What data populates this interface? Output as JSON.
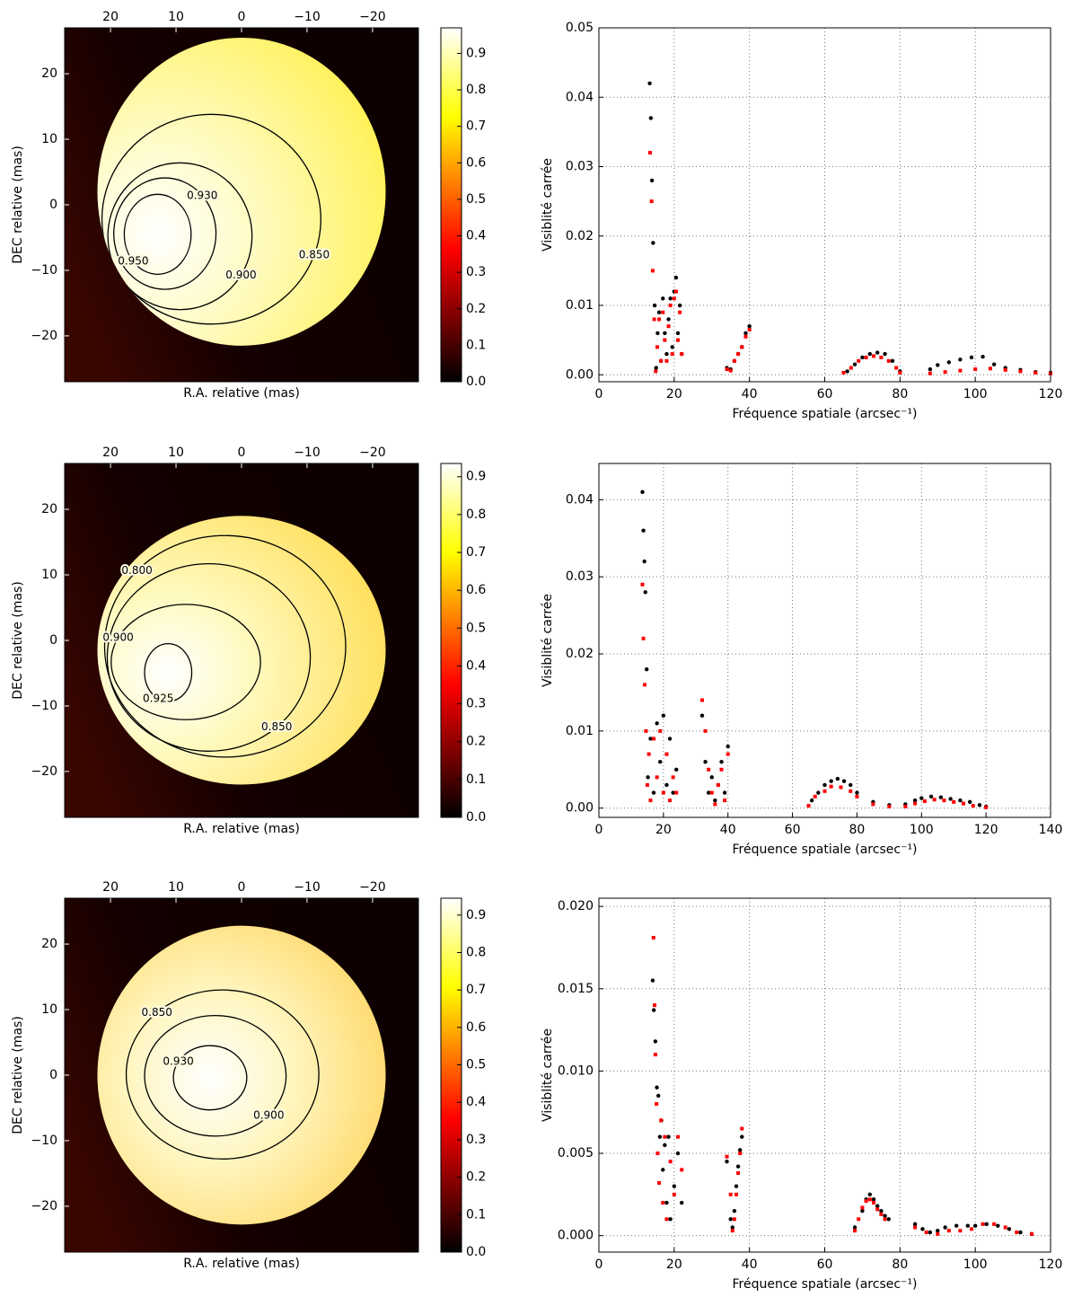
{
  "chart_data": [
    {
      "type": "image",
      "xlabel": "R.A. relative (mas)",
      "ylabel": "DEC relative (mas)",
      "xlim": [
        27,
        -27
      ],
      "ylim": [
        -27,
        27
      ],
      "xticks": [
        20,
        10,
        0,
        {
          "value": -10,
          "label": "−10"
        },
        {
          "value": -20,
          "label": "−20"
        }
      ],
      "yticks": [
        {
          "value": -20,
          "label": "−20"
        },
        {
          "value": -10,
          "label": "−10"
        },
        0,
        10,
        20
      ],
      "disk": {
        "center": [
          0,
          2
        ],
        "radii": [
          22,
          23.5
        ]
      },
      "contours": [
        {
          "level": {
            "value": 0.85,
            "label": "0.850"
          },
          "center": [
            4.6,
            -2.2
          ],
          "radii": [
            16.7,
            16
          ]
        },
        {
          "level": {
            "value": 0.9,
            "label": "0.900"
          },
          "center": [
            9.4,
            -4.8
          ],
          "radii": [
            11,
            11.2
          ]
        },
        {
          "level": {
            "value": 0.93,
            "label": "0.930"
          },
          "center": [
            11.7,
            -4.4
          ],
          "radii": [
            7.8,
            8.5
          ]
        },
        {
          "level": {
            "value": 0.95,
            "label": "0.950"
          },
          "center": [
            12.8,
            -4.5
          ],
          "radii": [
            5.1,
            6.1
          ]
        }
      ],
      "clim": [
        0,
        0.97
      ],
      "cticks": [
        {
          "value": 0,
          "label": "0.0"
        },
        0.1,
        0.2,
        0.3,
        0.4,
        0.5,
        0.6,
        0.7,
        0.8,
        0.9
      ]
    },
    {
      "type": "scatter",
      "xlabel": "Fréquence spatiale (arcsec⁻¹)",
      "ylabel": "Visiblité carrée",
      "xlim": [
        0,
        120
      ],
      "ylim": [
        -0.001,
        0.05
      ],
      "grid": true,
      "xticks": [
        0,
        20,
        40,
        60,
        80,
        100,
        120
      ],
      "yticks": [
        {
          "value": 0,
          "label": "0.00"
        },
        0.01,
        0.02,
        0.03,
        0.04,
        0.05
      ],
      "series": [
        {
          "color": "#000000",
          "marker": "circle",
          "x": [
            13.5,
            13.8,
            14.1,
            14.4,
            14.8,
            15.2,
            15.6,
            16,
            16.5,
            17,
            17.5,
            18,
            18.5,
            19,
            19.5,
            20,
            20.5,
            21,
            21.5,
            22,
            34,
            35,
            36,
            37,
            38,
            39,
            40,
            66,
            68,
            70,
            72,
            74,
            76,
            78,
            80,
            88,
            90,
            93,
            96,
            99,
            102,
            105,
            108,
            112,
            116,
            120
          ],
          "values": [
            0.042,
            0.037,
            0.028,
            0.019,
            0.01,
            0.001,
            0.006,
            0.009,
            0.002,
            0.011,
            0.006,
            0.003,
            0.008,
            0.011,
            0.004,
            0.012,
            0.014,
            0.006,
            0.01,
            0.003,
            0.001,
            0.0008,
            0.002,
            0.003,
            0.004,
            0.006,
            0.007,
            0.0005,
            0.0015,
            0.0025,
            0.003,
            0.0032,
            0.003,
            0.002,
            0.0005,
            0.0008,
            0.0014,
            0.0018,
            0.0022,
            0.0025,
            0.0026,
            0.0015,
            0.001,
            0.0007,
            0.0004,
            0.0003
          ]
        },
        {
          "color": "#ff0000",
          "marker": "square",
          "x": [
            13.6,
            14,
            14.3,
            14.7,
            15.1,
            15.5,
            16,
            16.5,
            17,
            17.5,
            18,
            18.5,
            19,
            19.5,
            20,
            20.5,
            21,
            21.5,
            22,
            34,
            35,
            36,
            37,
            38,
            39,
            40,
            65,
            67,
            69,
            71,
            73,
            75,
            77,
            79,
            80,
            88,
            92,
            96,
            100,
            104,
            108,
            112,
            116,
            120
          ],
          "values": [
            0.032,
            0.025,
            0.015,
            0.008,
            0.0005,
            0.004,
            0.008,
            0.002,
            0.009,
            0.005,
            0.002,
            0.007,
            0.01,
            0.003,
            0.011,
            0.012,
            0.005,
            0.009,
            0.003,
            0.0008,
            0.0006,
            0.002,
            0.003,
            0.004,
            0.0055,
            0.0065,
            0.0003,
            0.001,
            0.002,
            0.0025,
            0.0027,
            0.0025,
            0.002,
            0.001,
            0.0003,
            0.0002,
            0.0004,
            0.0006,
            0.0008,
            0.0009,
            0.0007,
            0.0005,
            0.0003,
            0.0002
          ]
        }
      ]
    },
    {
      "type": "image",
      "xlabel": "R.A. relative (mas)",
      "ylabel": "DEC relative (mas)",
      "xlim": [
        27,
        -27
      ],
      "ylim": [
        -27,
        27
      ],
      "xticks": [
        20,
        10,
        0,
        {
          "value": -10,
          "label": "−10"
        },
        {
          "value": -20,
          "label": "−20"
        }
      ],
      "yticks": [
        {
          "value": -20,
          "label": "−20"
        },
        {
          "value": -10,
          "label": "−10"
        },
        0,
        10,
        20
      ],
      "disk": {
        "center": [
          0,
          -1.5
        ],
        "radii": [
          22,
          20.5
        ]
      },
      "contours": [
        {
          "level": {
            "value": 0.8,
            "label": "0.800"
          },
          "center": [
            2.5,
            -0.9
          ],
          "radii": [
            18.4,
            16.9
          ]
        },
        {
          "level": {
            "value": 0.85,
            "label": "0.850"
          },
          "center": [
            5,
            -2.6
          ],
          "radii": [
            15.5,
            14.3
          ]
        },
        {
          "level": {
            "value": 0.9,
            "label": "0.900"
          },
          "center": [
            8.5,
            -3.3
          ],
          "radii": [
            11.4,
            8.8
          ]
        },
        {
          "level": {
            "value": 0.925,
            "label": "0.925"
          },
          "center": [
            11.2,
            -4.9
          ],
          "radii": [
            3.6,
            4.4
          ]
        }
      ],
      "clim": [
        0,
        0.935
      ],
      "cticks": [
        {
          "value": 0,
          "label": "0.0"
        },
        0.1,
        0.2,
        0.3,
        0.4,
        0.5,
        0.6,
        0.7,
        0.8,
        0.9
      ]
    },
    {
      "type": "scatter",
      "xlabel": "Fréquence spatiale (arcsec⁻¹)",
      "ylabel": "Visiblité carrée",
      "xlim": [
        0,
        140
      ],
      "ylim": [
        -0.0012,
        0.0447
      ],
      "grid": true,
      "xticks": [
        0,
        20,
        40,
        60,
        80,
        100,
        120,
        140
      ],
      "yticks": [
        {
          "value": 0,
          "label": "0.00"
        },
        0.01,
        0.02,
        0.03,
        0.04
      ],
      "series": [
        {
          "color": "#000000",
          "marker": "circle",
          "x": [
            13.5,
            13.8,
            14.1,
            14.4,
            14.8,
            15.2,
            16,
            17,
            18,
            19,
            20,
            21,
            22,
            23,
            24,
            32,
            33,
            34,
            35,
            36,
            37,
            38,
            39,
            40,
            66,
            68,
            70,
            72,
            74,
            76,
            78,
            80,
            85,
            90,
            95,
            98,
            100,
            103,
            106,
            109,
            112,
            115,
            118,
            120
          ],
          "values": [
            0.041,
            0.036,
            0.032,
            0.028,
            0.018,
            0.004,
            0.009,
            0.002,
            0.011,
            0.006,
            0.012,
            0.003,
            0.009,
            0.002,
            0.005,
            0.012,
            0.006,
            0.002,
            0.004,
            0.001,
            0.003,
            0.006,
            0.002,
            0.008,
            0.001,
            0.002,
            0.003,
            0.0035,
            0.0038,
            0.0035,
            0.003,
            0.002,
            0.0008,
            0.0004,
            0.0005,
            0.001,
            0.0013,
            0.0015,
            0.0014,
            0.0012,
            0.001,
            0.0008,
            0.0004,
            0.0002
          ]
        },
        {
          "color": "#ff0000",
          "marker": "square",
          "x": [
            13.5,
            13.8,
            14.2,
            14.6,
            15,
            15.5,
            16,
            17,
            18,
            19,
            20,
            21,
            22,
            23,
            24,
            32,
            33,
            34,
            35,
            36,
            37,
            38,
            39,
            40,
            65,
            67,
            70,
            72,
            75,
            78,
            80,
            85,
            90,
            95,
            98,
            101,
            104,
            107,
            110,
            113,
            116,
            120
          ],
          "values": [
            0.029,
            0.022,
            0.016,
            0.01,
            0.003,
            0.007,
            0.001,
            0.009,
            0.004,
            0.01,
            0.002,
            0.007,
            0.001,
            0.004,
            0.002,
            0.014,
            0.01,
            0.005,
            0.002,
            0.0005,
            0.003,
            0.005,
            0.001,
            0.007,
            0.0003,
            0.0015,
            0.0022,
            0.0028,
            0.0027,
            0.0022,
            0.0015,
            0.0005,
            0.0002,
            0.0002,
            0.0006,
            0.0009,
            0.0011,
            0.001,
            0.0008,
            0.0006,
            0.0003,
            0.0001
          ]
        }
      ]
    },
    {
      "type": "image",
      "xlabel": "R.A. relative (mas)",
      "ylabel": "DEC relative (mas)",
      "xlim": [
        27,
        -27
      ],
      "ylim": [
        -27,
        27
      ],
      "xticks": [
        20,
        10,
        0,
        {
          "value": -10,
          "label": "−10"
        },
        {
          "value": -20,
          "label": "−20"
        }
      ],
      "yticks": [
        {
          "value": -20,
          "label": "−20"
        },
        {
          "value": -10,
          "label": "−10"
        },
        0,
        10,
        20
      ],
      "disk": {
        "center": [
          0,
          0
        ],
        "radii": [
          22,
          22.8
        ]
      },
      "contours": [
        {
          "level": {
            "value": 0.85,
            "label": "0.850"
          },
          "center": [
            2.9,
            0.1
          ],
          "radii": [
            14.7,
            12.9
          ]
        },
        {
          "level": {
            "value": 0.9,
            "label": "0.900"
          },
          "center": [
            4,
            -0.1
          ],
          "radii": [
            10.8,
            9.2
          ]
        },
        {
          "level": {
            "value": 0.93,
            "label": "0.930"
          },
          "center": [
            4.8,
            -0.4
          ],
          "radii": [
            5.6,
            4.9
          ]
        }
      ],
      "clim": [
        0,
        0.945
      ],
      "cticks": [
        {
          "value": 0,
          "label": "0.0"
        },
        0.1,
        0.2,
        0.3,
        0.4,
        0.5,
        0.6,
        0.7,
        0.8,
        0.9
      ]
    },
    {
      "type": "scatter",
      "xlabel": "Fréquence spatiale (arcsec⁻¹)",
      "ylabel": "Visiblité carrée",
      "xlim": [
        0,
        120
      ],
      "ylim": [
        -0.001,
        0.0205
      ],
      "grid": true,
      "xticks": [
        0,
        20,
        40,
        60,
        80,
        100,
        120
      ],
      "yticks": [
        {
          "value": 0,
          "label": "0.000"
        },
        0.005,
        {
          "value": 0.01,
          "label": "0.010"
        },
        0.015,
        {
          "value": 0.02,
          "label": "0.020"
        }
      ],
      "series": [
        {
          "color": "#000000",
          "marker": "circle",
          "x": [
            14.3,
            14.6,
            15,
            15.4,
            15.8,
            16.2,
            16.6,
            17,
            17.5,
            18,
            18.5,
            19,
            20,
            21,
            22,
            34,
            35,
            35.5,
            36,
            36.5,
            37,
            37.5,
            38,
            68,
            70,
            71,
            72,
            73,
            74,
            75,
            76,
            77,
            84,
            86,
            88,
            90,
            92,
            95,
            98,
            100,
            103,
            106,
            109,
            112,
            115
          ],
          "values": [
            0.0155,
            0.0137,
            0.0118,
            0.009,
            0.0085,
            0.006,
            0.007,
            0.004,
            0.0055,
            0.002,
            0.006,
            0.001,
            0.003,
            0.005,
            0.002,
            0.0045,
            0.001,
            0.0005,
            0.0015,
            0.003,
            0.0042,
            0.0052,
            0.006,
            0.0005,
            0.0015,
            0.0022,
            0.0025,
            0.0022,
            0.0018,
            0.0015,
            0.0012,
            0.001,
            0.0007,
            0.0004,
            0.0002,
            0.0003,
            0.0005,
            0.0006,
            0.0006,
            0.0006,
            0.0007,
            0.0006,
            0.0004,
            0.0002,
            0.0001
          ]
        },
        {
          "color": "#ff0000",
          "marker": "square",
          "x": [
            14.5,
            14.8,
            15,
            15.3,
            15.6,
            16,
            16.5,
            17,
            17.5,
            18,
            19,
            20,
            21,
            22,
            34,
            35,
            35.5,
            36,
            36.5,
            37,
            37.5,
            38,
            68,
            69,
            70,
            71,
            72,
            73,
            74,
            75,
            76,
            84,
            87,
            90,
            93,
            96,
            99,
            102,
            105,
            108,
            111,
            115
          ],
          "values": [
            0.0181,
            0.014,
            0.011,
            0.008,
            0.005,
            0.0032,
            0.007,
            0.002,
            0.006,
            0.001,
            0.0045,
            0.0025,
            0.006,
            0.004,
            0.0048,
            0.0025,
            0.0003,
            0.001,
            0.0025,
            0.0038,
            0.005,
            0.0065,
            0.0003,
            0.001,
            0.0017,
            0.0021,
            0.0022,
            0.002,
            0.0016,
            0.0013,
            0.001,
            0.0005,
            0.0002,
            0.0001,
            0.0003,
            0.0003,
            0.0004,
            0.0007,
            0.0007,
            0.0005,
            0.0002,
            0.0001
          ]
        }
      ]
    }
  ]
}
